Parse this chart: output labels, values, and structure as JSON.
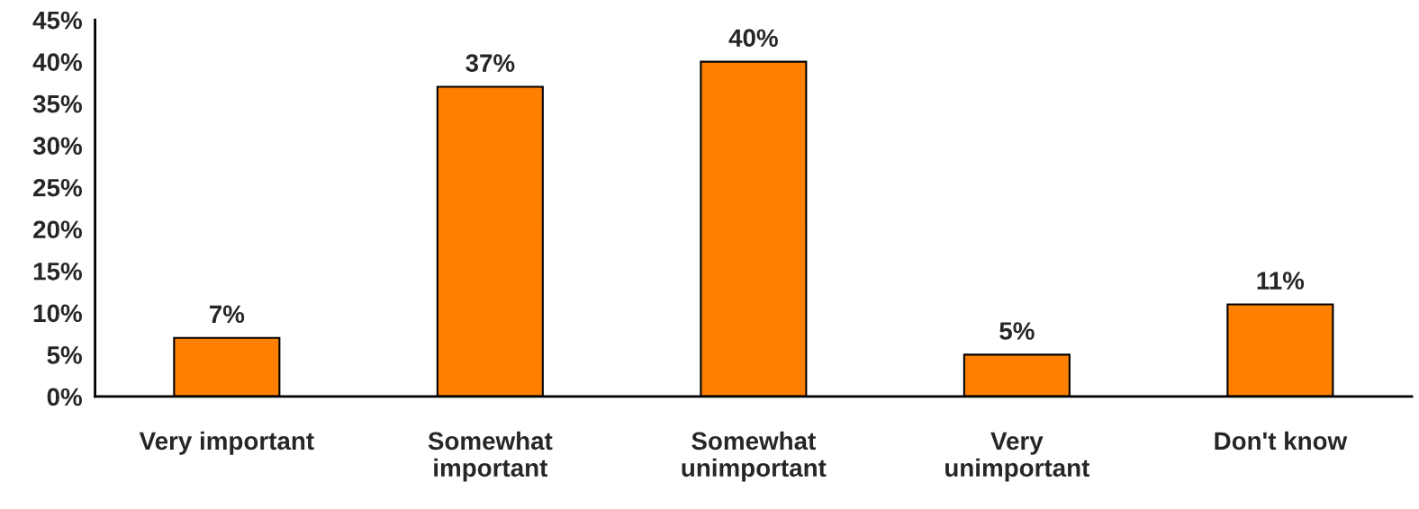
{
  "chart_data": {
    "type": "bar",
    "categories": [
      "Very important",
      "Somewhat\nimportant",
      "Somewhat\nunimportant",
      "Very\nunimportant",
      "Don't know"
    ],
    "values": [
      7,
      37,
      40,
      5,
      11
    ],
    "value_labels": [
      "7%",
      "37%",
      "40%",
      "5%",
      "11%"
    ],
    "color": "#ff7f00",
    "ylim": [
      0,
      45
    ],
    "yticks": [
      {
        "value": 0,
        "label": "0%"
      },
      {
        "value": 5,
        "label": "5%"
      },
      {
        "value": 10,
        "label": "10%"
      },
      {
        "value": 15,
        "label": "15%"
      },
      {
        "value": 20,
        "label": "20%"
      },
      {
        "value": 25,
        "label": "25%"
      },
      {
        "value": 30,
        "label": "30%"
      },
      {
        "value": 35,
        "label": "35%"
      },
      {
        "value": 40,
        "label": "40%"
      },
      {
        "value": 45,
        "label": "45%"
      }
    ],
    "grid": false,
    "legend": false
  }
}
